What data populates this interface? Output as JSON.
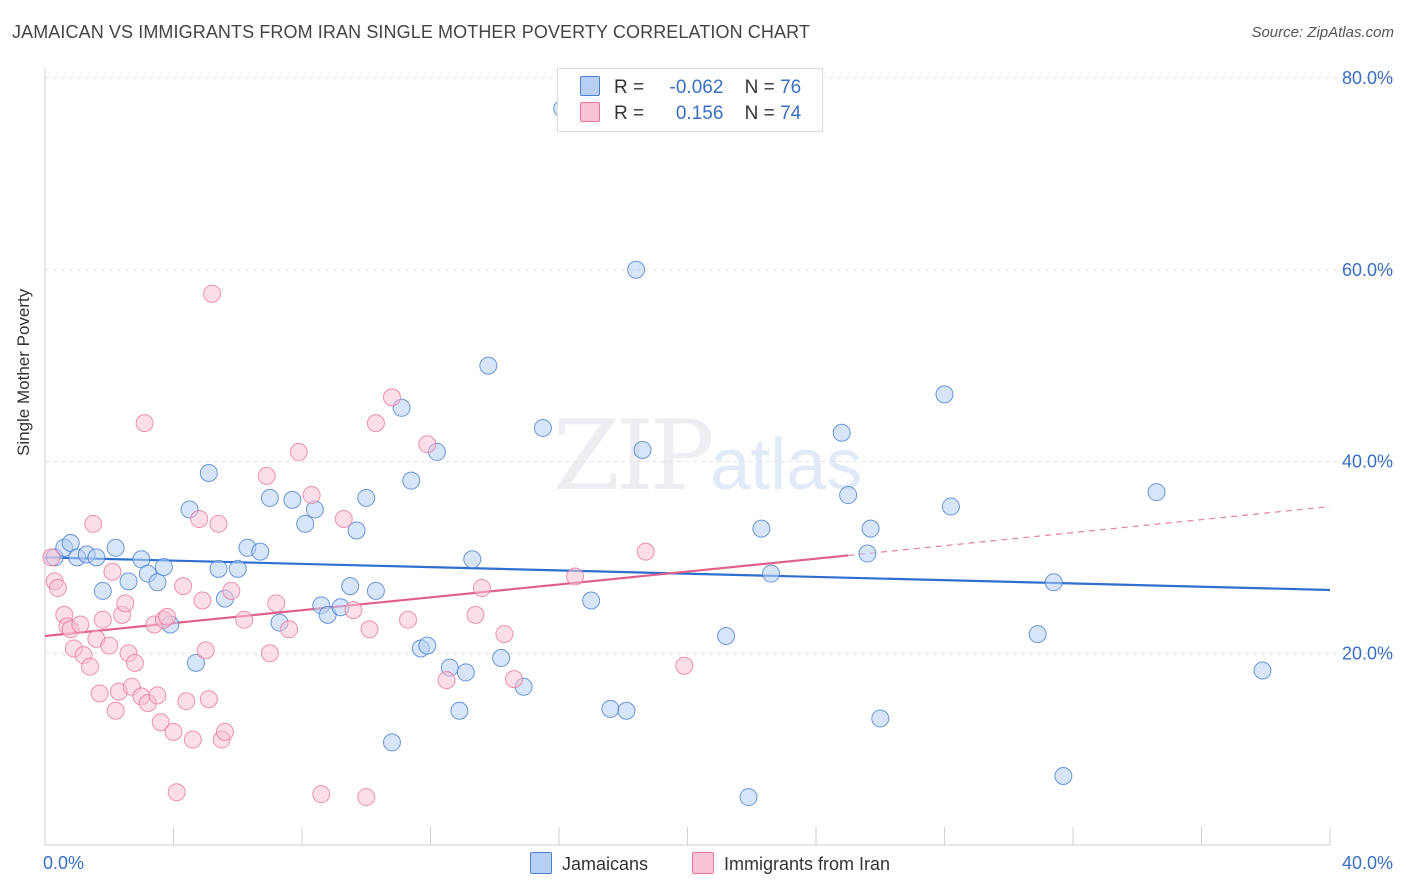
{
  "title": "JAMAICAN VS IMMIGRANTS FROM IRAN SINGLE MOTHER POVERTY CORRELATION CHART",
  "source": "Source: ZipAtlas.com",
  "watermark": {
    "zip": "ZIP",
    "atlas": "atlas"
  },
  "colors": {
    "blue": "#4a7fd4",
    "blue_fill": "#b7cff2",
    "blue_line": "#2f6fd0",
    "pink": "#e8799d",
    "pink_fill": "#f7c2d3",
    "pink_line": "#e0608c",
    "tick_label": "#3a6fc4",
    "grid": "#e3e3e3"
  },
  "legend": {
    "rows": [
      {
        "r_label": "R =",
        "r_value": "-0.062",
        "n_label": "N =",
        "n_value": "76"
      },
      {
        "r_label": "R =",
        "r_value": "0.156",
        "n_label": "N =",
        "n_value": "74"
      }
    ]
  },
  "bottom_legend": {
    "series1": "Jamaicans",
    "series2": "Immigrants from Iran"
  },
  "chart_data": {
    "type": "scatter",
    "title": "JAMAICAN VS IMMIGRANTS FROM IRAN SINGLE MOTHER POVERTY CORRELATION CHART",
    "xlabel": "",
    "ylabel": "Single Mother Poverty",
    "xlim": [
      0,
      40
    ],
    "ylim": [
      0,
      80
    ],
    "x_tick_labels": [
      "0.0%",
      "40.0%"
    ],
    "y_tick_labels": [
      "20.0%",
      "40.0%",
      "60.0%",
      "80.0%"
    ],
    "y_ticks": [
      20,
      40,
      60,
      80
    ],
    "grid": true,
    "legend_placement": "top-center",
    "series": [
      {
        "name": "Jamaicans",
        "R": -0.062,
        "N": 76,
        "trend": {
          "x": [
            0,
            40
          ],
          "y": [
            30.0,
            26.6
          ]
        },
        "points": [
          [
            0.3,
            30.0
          ],
          [
            0.6,
            31.0
          ],
          [
            0.8,
            31.5
          ],
          [
            1.0,
            30.0
          ],
          [
            1.3,
            30.3
          ],
          [
            1.6,
            30.0
          ],
          [
            1.8,
            26.5
          ],
          [
            2.2,
            31.0
          ],
          [
            2.6,
            27.5
          ],
          [
            3.0,
            29.8
          ],
          [
            3.2,
            28.3
          ],
          [
            3.5,
            27.4
          ],
          [
            3.7,
            29.0
          ],
          [
            3.9,
            23.0
          ],
          [
            4.5,
            35.0
          ],
          [
            4.7,
            19.0
          ],
          [
            5.1,
            38.8
          ],
          [
            5.4,
            28.8
          ],
          [
            5.6,
            25.7
          ],
          [
            6.0,
            28.8
          ],
          [
            6.3,
            31.0
          ],
          [
            6.7,
            30.6
          ],
          [
            7.0,
            36.2
          ],
          [
            7.3,
            23.2
          ],
          [
            7.7,
            36.0
          ],
          [
            8.1,
            33.5
          ],
          [
            8.4,
            35.0
          ],
          [
            8.6,
            25.0
          ],
          [
            8.8,
            24.0
          ],
          [
            9.2,
            24.8
          ],
          [
            9.5,
            27.0
          ],
          [
            9.7,
            32.8
          ],
          [
            10.0,
            36.2
          ],
          [
            10.3,
            26.5
          ],
          [
            10.8,
            10.7
          ],
          [
            11.1,
            45.6
          ],
          [
            11.4,
            38.0
          ],
          [
            11.7,
            20.5
          ],
          [
            11.9,
            20.8
          ],
          [
            12.2,
            41.0
          ],
          [
            12.6,
            18.5
          ],
          [
            12.9,
            14.0
          ],
          [
            13.1,
            18.0
          ],
          [
            13.3,
            29.8
          ],
          [
            13.8,
            50.0
          ],
          [
            14.2,
            19.5
          ],
          [
            14.9,
            16.5
          ],
          [
            15.5,
            43.5
          ],
          [
            16.1,
            76.8
          ],
          [
            17.0,
            25.5
          ],
          [
            17.6,
            14.2
          ],
          [
            18.1,
            14.0
          ],
          [
            18.4,
            60.0
          ],
          [
            18.6,
            41.2
          ],
          [
            21.2,
            21.8
          ],
          [
            21.9,
            5.0
          ],
          [
            22.3,
            33.0
          ],
          [
            22.6,
            28.3
          ],
          [
            24.8,
            43.0
          ],
          [
            25.0,
            36.5
          ],
          [
            25.6,
            30.4
          ],
          [
            25.7,
            33.0
          ],
          [
            26.0,
            13.2
          ],
          [
            28.0,
            47.0
          ],
          [
            28.2,
            35.3
          ],
          [
            30.9,
            22.0
          ],
          [
            31.4,
            27.4
          ],
          [
            31.7,
            7.2
          ],
          [
            34.6,
            36.8
          ],
          [
            37.9,
            18.2
          ]
        ]
      },
      {
        "name": "Immigrants from Iran",
        "R": 0.156,
        "N": 74,
        "trend": {
          "x": [
            0,
            25.0
          ],
          "y": [
            21.8,
            30.2
          ]
        },
        "trend_dashed": {
          "x": [
            25.0,
            40
          ],
          "y": [
            30.2,
            35.3
          ]
        },
        "points": [
          [
            0.2,
            30.0
          ],
          [
            0.3,
            27.5
          ],
          [
            0.4,
            26.8
          ],
          [
            0.6,
            24.0
          ],
          [
            0.7,
            22.8
          ],
          [
            0.8,
            22.5
          ],
          [
            0.9,
            20.5
          ],
          [
            1.1,
            23.0
          ],
          [
            1.2,
            19.8
          ],
          [
            1.4,
            18.6
          ],
          [
            1.5,
            33.5
          ],
          [
            1.6,
            21.5
          ],
          [
            1.7,
            15.8
          ],
          [
            1.8,
            23.5
          ],
          [
            2.0,
            20.8
          ],
          [
            2.1,
            28.5
          ],
          [
            2.2,
            14.0
          ],
          [
            2.3,
            16.0
          ],
          [
            2.4,
            24.0
          ],
          [
            2.5,
            25.2
          ],
          [
            2.6,
            20.0
          ],
          [
            2.7,
            16.5
          ],
          [
            2.8,
            19.0
          ],
          [
            3.0,
            15.5
          ],
          [
            3.1,
            44.0
          ],
          [
            3.2,
            14.8
          ],
          [
            3.4,
            23.0
          ],
          [
            3.5,
            15.6
          ],
          [
            3.6,
            12.8
          ],
          [
            3.7,
            23.5
          ],
          [
            3.8,
            23.8
          ],
          [
            4.0,
            11.8
          ],
          [
            4.1,
            5.5
          ],
          [
            4.3,
            27.0
          ],
          [
            4.4,
            15.0
          ],
          [
            4.6,
            11.0
          ],
          [
            4.8,
            34.0
          ],
          [
            4.9,
            25.5
          ],
          [
            5.0,
            20.3
          ],
          [
            5.1,
            15.2
          ],
          [
            5.2,
            57.5
          ],
          [
            5.4,
            33.5
          ],
          [
            5.5,
            11.0
          ],
          [
            5.6,
            11.8
          ],
          [
            5.8,
            26.5
          ],
          [
            6.2,
            23.5
          ],
          [
            6.9,
            38.5
          ],
          [
            7.0,
            20.0
          ],
          [
            7.2,
            25.2
          ],
          [
            7.6,
            22.5
          ],
          [
            7.9,
            41.0
          ],
          [
            8.3,
            36.5
          ],
          [
            8.6,
            5.3
          ],
          [
            9.3,
            34.0
          ],
          [
            9.6,
            24.5
          ],
          [
            10.0,
            5.0
          ],
          [
            10.1,
            22.5
          ],
          [
            10.3,
            44.0
          ],
          [
            10.8,
            46.7
          ],
          [
            11.3,
            23.5
          ],
          [
            11.9,
            41.8
          ],
          [
            12.5,
            17.2
          ],
          [
            13.4,
            24.0
          ],
          [
            13.6,
            26.8
          ],
          [
            14.3,
            22.0
          ],
          [
            14.6,
            17.3
          ],
          [
            16.5,
            28.0
          ],
          [
            18.7,
            30.6
          ],
          [
            19.9,
            18.7
          ]
        ]
      }
    ]
  }
}
